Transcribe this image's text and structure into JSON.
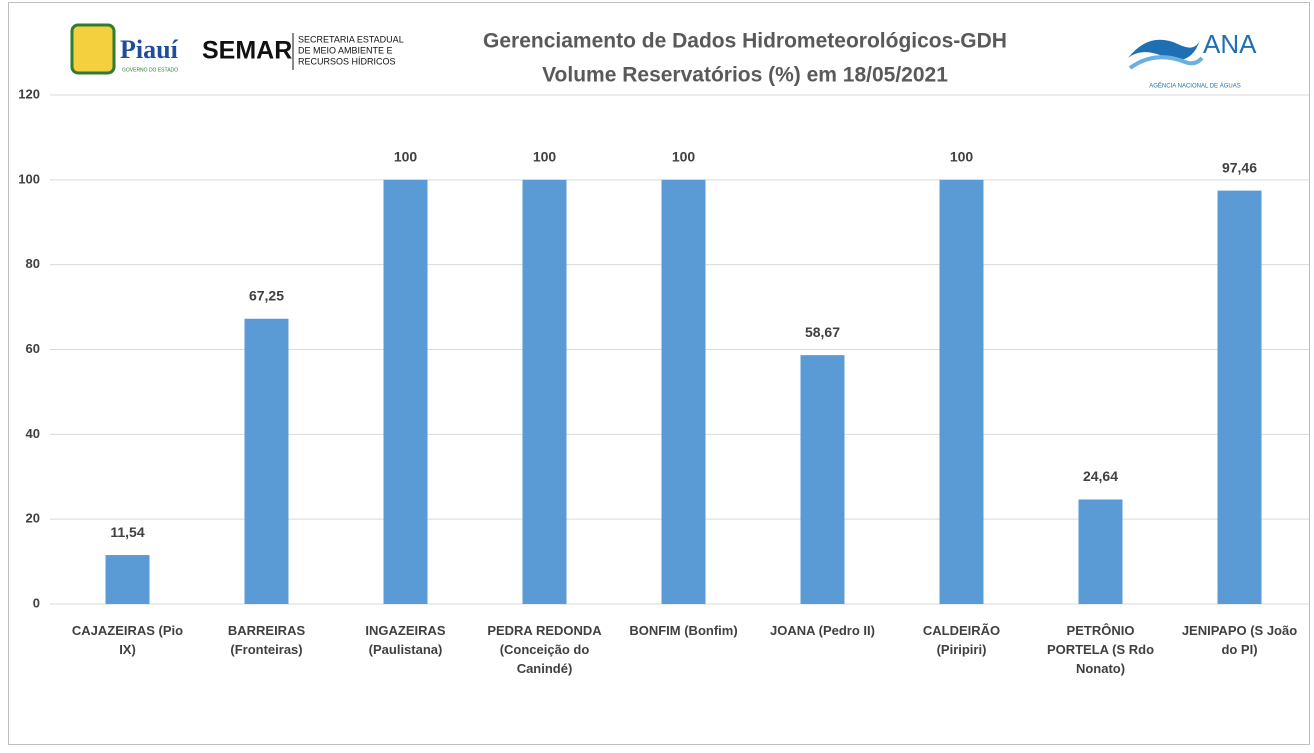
{
  "chart_data": {
    "type": "bar",
    "title": "Gerenciamento de Dados Hidrometeorológicos-GDH",
    "subtitle": "Volume Reservatórios (%)  em 18/05/2021",
    "logos": {
      "state": "Piauí",
      "state_sub": "GOVERNO DO ESTADO",
      "agency": "SEMAR",
      "agency_sub": [
        "SECRETARIA ESTADUAL",
        "DE MEIO AMBIENTE E",
        "RECURSOS HÍDRICOS"
      ],
      "ana": "ANA",
      "ana_sub": "AGÊNCIA NACIONAL DE ÁGUAS"
    },
    "categories": [
      "CAJAZEIRAS (Pio IX)",
      "BARREIRAS (Fronteiras)",
      "INGAZEIRAS (Paulistana)",
      "PEDRA REDONDA (Conceição do Canindé)",
      "BONFIM (Bonfim)",
      "JOANA (Pedro II)",
      "CALDEIRÃO (Piripiri)",
      "PETRÔNIO PORTELA (S Rdo Nonato)",
      "JENIPAPO (S João do PI)"
    ],
    "values": [
      11.54,
      67.25,
      100,
      100,
      100,
      58.67,
      100,
      24.64,
      97.46
    ],
    "value_labels": [
      "11,54",
      "67,25",
      "100",
      "100",
      "100",
      "58,67",
      "100",
      "24,64",
      "97,46"
    ],
    "color": "#5b9bd5",
    "ylim": [
      0,
      120
    ],
    "yticks": [
      0,
      20,
      40,
      60,
      80,
      100,
      120
    ],
    "grid": true
  }
}
